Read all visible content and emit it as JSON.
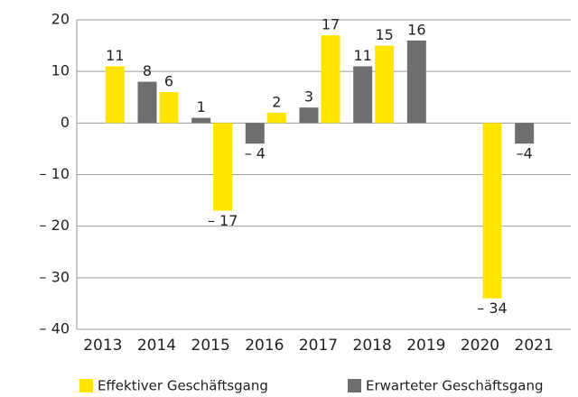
{
  "chart_data": {
    "type": "bar",
    "categories": [
      "2013",
      "2014",
      "2015",
      "2016",
      "2017",
      "2018",
      "2019",
      "2020",
      "2021"
    ],
    "series": [
      {
        "name": "Erwarteter Geschäftsgang",
        "color": "#6d6e70",
        "values": [
          null,
          8,
          1,
          -4,
          3,
          11,
          16,
          null,
          -4
        ],
        "value_labels": [
          null,
          "8",
          "1",
          "– 4",
          "3",
          "11",
          "16",
          null,
          "–4"
        ]
      },
      {
        "name": "Effektiver Geschäftsgang",
        "color": "#ffe500",
        "values": [
          11,
          6,
          -17,
          2,
          17,
          15,
          null,
          -34,
          null
        ],
        "value_labels": [
          "11",
          "6",
          "– 17",
          "2",
          "17",
          "15",
          null,
          "– 34",
          null
        ]
      }
    ],
    "ylim": [
      -40,
      20
    ],
    "yticks": [
      {
        "value": -40,
        "label": "– 40"
      },
      {
        "value": -30,
        "label": "– 30"
      },
      {
        "value": -20,
        "label": "– 20"
      },
      {
        "value": -10,
        "label": "– 10"
      },
      0,
      10,
      20
    ],
    "grid": true
  }
}
